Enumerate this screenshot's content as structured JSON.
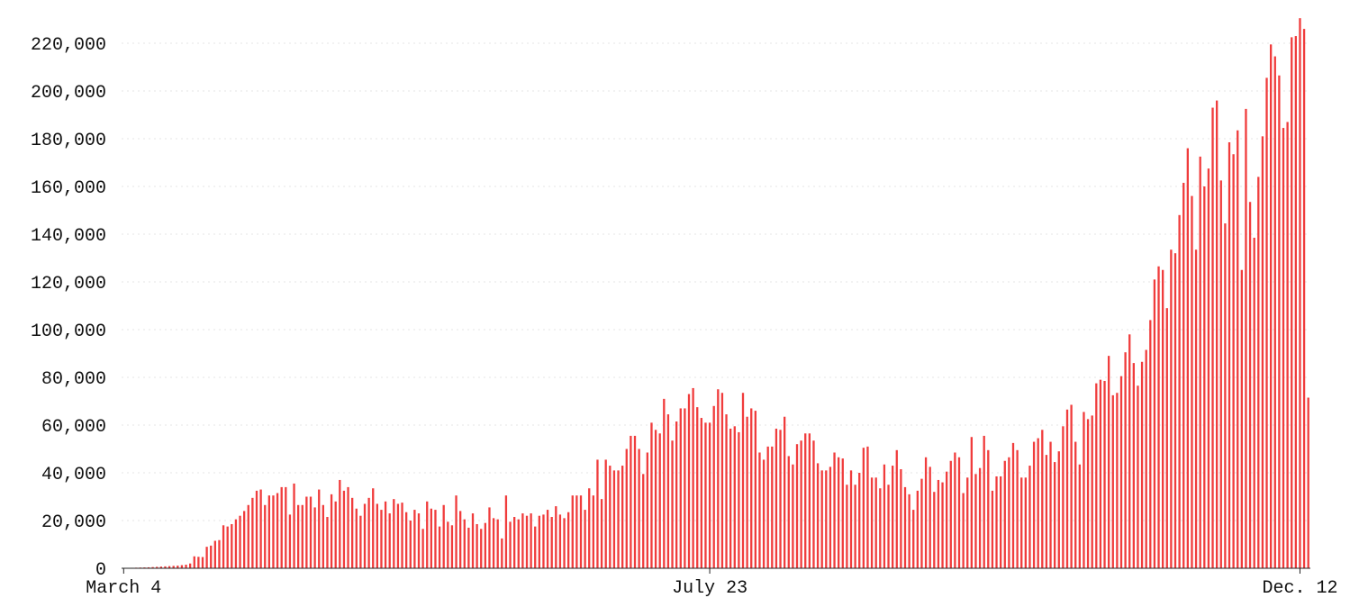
{
  "chart_data": {
    "type": "bar",
    "title": "",
    "xlabel": "",
    "ylabel": "",
    "ylim": [
      0,
      230000
    ],
    "grid": true,
    "bar_color": "#f03c3c",
    "y_ticks": [
      {
        "value": 0,
        "label": "0"
      },
      {
        "value": 20000,
        "label": "20,000"
      },
      {
        "value": 40000,
        "label": "40,000"
      },
      {
        "value": 60000,
        "label": "60,000"
      },
      {
        "value": 80000,
        "label": "80,000"
      },
      {
        "value": 100000,
        "label": "100,000"
      },
      {
        "value": 120000,
        "label": "120,000"
      },
      {
        "value": 140000,
        "label": "140,000"
      },
      {
        "value": 160000,
        "label": "160,000"
      },
      {
        "value": 180000,
        "label": "180,000"
      },
      {
        "value": 200000,
        "label": "200,000"
      },
      {
        "value": 220000,
        "label": "220,000"
      }
    ],
    "x_ticks": [
      {
        "index": 0,
        "label": "March 4"
      },
      {
        "index": 141,
        "label": "July 23"
      },
      {
        "index": 283,
        "label": "Dec. 12"
      }
    ],
    "start_date": "2020-03-04",
    "values": [
      100,
      150,
      200,
      250,
      300,
      350,
      400,
      500,
      600,
      700,
      800,
      900,
      1000,
      1100,
      1300,
      1500,
      2000,
      5000,
      4800,
      4700,
      9000,
      9500,
      11500,
      11800,
      18000,
      17500,
      18500,
      20500,
      22000,
      24000,
      26500,
      29500,
      32500,
      33000,
      26500,
      30500,
      30500,
      31500,
      34000,
      34000,
      22500,
      35500,
      26500,
      26500,
      30000,
      30000,
      25500,
      33000,
      26500,
      21500,
      31000,
      28000,
      37000,
      32500,
      34000,
      29500,
      25000,
      22000,
      27000,
      29500,
      33500,
      27000,
      24500,
      28000,
      23000,
      29000,
      27000,
      27500,
      23500,
      20000,
      24500,
      23000,
      16500,
      28000,
      25000,
      24500,
      17500,
      26500,
      19500,
      18000,
      30500,
      24000,
      20500,
      17000,
      23000,
      18500,
      16500,
      19000,
      25500,
      21000,
      20500,
      12500,
      30500,
      19500,
      21500,
      20500,
      23000,
      22000,
      23000,
      17500,
      22000,
      22500,
      24500,
      21500,
      26000,
      22500,
      21000,
      23500,
      30500,
      30500,
      30500,
      24500,
      33500,
      30500,
      45500,
      29000,
      45500,
      43000,
      41000,
      41000,
      43000,
      50000,
      55500,
      55500,
      50000,
      39500,
      48500,
      61000,
      58000,
      56500,
      71000,
      64500,
      53500,
      61500,
      67000,
      67000,
      73000,
      75500,
      67500,
      63000,
      61000,
      61000,
      68000,
      75000,
      73500,
      64500,
      58500,
      59500,
      57000,
      73500,
      63500,
      67000,
      66000,
      48500,
      45500,
      51000,
      51000,
      58500,
      58000,
      63500,
      47000,
      43500,
      52000,
      53500,
      56500,
      56500,
      53500,
      44000,
      41000,
      41000,
      42500,
      48500,
      46500,
      46000,
      35000,
      41000,
      35000,
      40000,
      50500,
      51000,
      38000,
      38000,
      33500,
      43500,
      35000,
      43000,
      49500,
      41500,
      34000,
      31000,
      24500,
      32500,
      37500,
      46500,
      42500,
      32000,
      37000,
      36000,
      40500,
      45000,
      48500,
      46500,
      31500,
      38000,
      55000,
      39500,
      42000,
      55500,
      49500,
      32500,
      38500,
      38500,
      45000,
      46500,
      52500,
      49500,
      38000,
      38000,
      43000,
      53000,
      54500,
      58000,
      47500,
      53000,
      44500,
      49000,
      59500,
      66500,
      68500,
      53000,
      43500,
      65500,
      62500,
      64000,
      77500,
      79000,
      78500,
      89000,
      72500,
      73500,
      80500,
      90500,
      98000,
      86000,
      76500,
      86500,
      91500,
      104000,
      121000,
      126500,
      125000,
      109000,
      133500,
      132000,
      148000,
      161500,
      176000,
      156000,
      133500,
      172500,
      160000,
      167500,
      193000,
      196000,
      162500,
      144500,
      178500,
      173500,
      183500,
      125000,
      192500,
      153500,
      138500,
      164000,
      181000,
      205500,
      219500,
      214500,
      206500,
      184500,
      187000,
      222500,
      223000,
      230500,
      226000,
      71500
    ]
  }
}
